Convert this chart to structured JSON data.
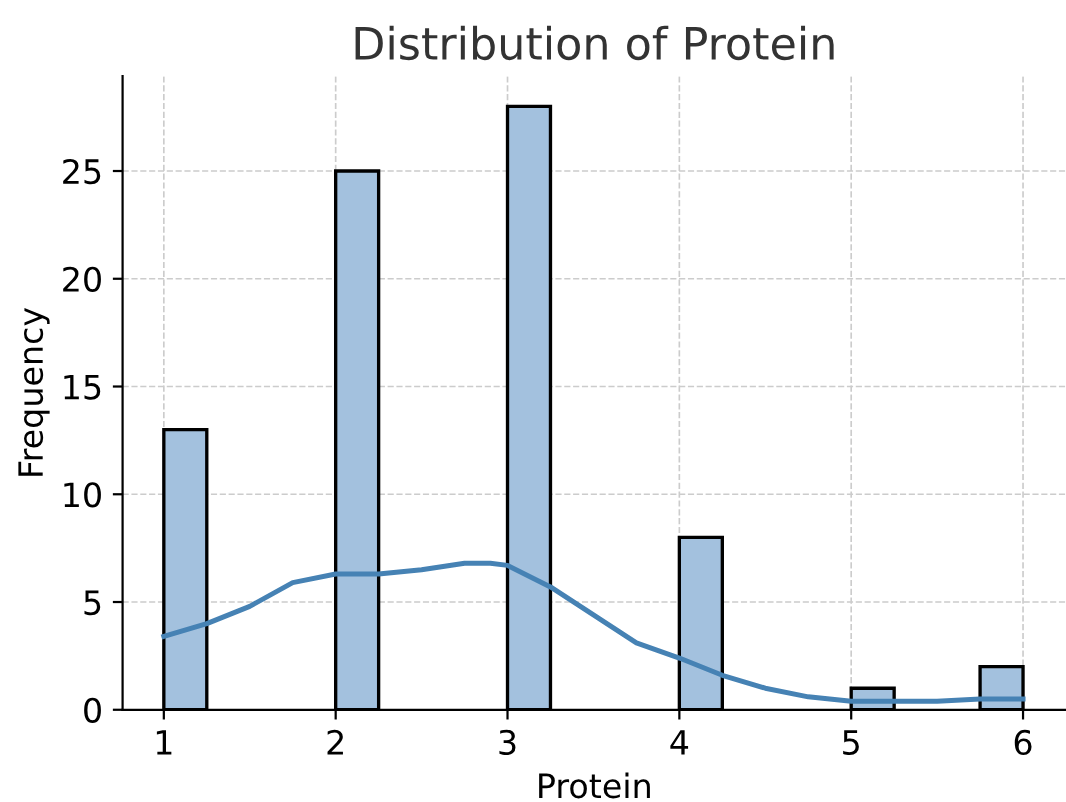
{
  "chart_data": {
    "type": "histogram",
    "title": "Distribution of Protein",
    "xlabel": "Protein",
    "ylabel": "Frequency",
    "bins": [
      1,
      1.25,
      1.5,
      1.75,
      2,
      2.25,
      2.5,
      2.75,
      3,
      3.25,
      3.5,
      3.75,
      4,
      4.25,
      4.5,
      4.75,
      5,
      5.25,
      5.5,
      5.75,
      6
    ],
    "values": [
      13,
      0,
      0,
      0,
      25,
      0,
      0,
      0,
      28,
      0,
      0,
      0,
      8,
      0,
      0,
      0,
      1,
      0,
      0,
      2
    ],
    "color": "#a3c1de",
    "series": [
      {
        "type": "line",
        "color": "#4682b4",
        "x": [
          1,
          1.25,
          1.5,
          1.75,
          2,
          2.25,
          2.5,
          2.75,
          2.9,
          3,
          3.25,
          3.5,
          3.75,
          4,
          4.25,
          4.5,
          4.75,
          5,
          5.25,
          5.5,
          5.75,
          6
        ],
        "values": [
          3.4,
          4.0,
          4.8,
          5.9,
          6.3,
          6.3,
          6.5,
          6.8,
          6.8,
          6.7,
          5.7,
          4.4,
          3.1,
          2.4,
          1.6,
          1.0,
          0.6,
          0.4,
          0.4,
          0.4,
          0.5,
          0.5
        ]
      }
    ],
    "xlim": [
      0.76,
      6.25
    ],
    "ylim": [
      0,
      29.4
    ],
    "xticks": [
      1,
      2,
      3,
      4,
      5,
      6
    ],
    "yticks": [
      0,
      5,
      10,
      15,
      20,
      25
    ],
    "grid": true
  }
}
